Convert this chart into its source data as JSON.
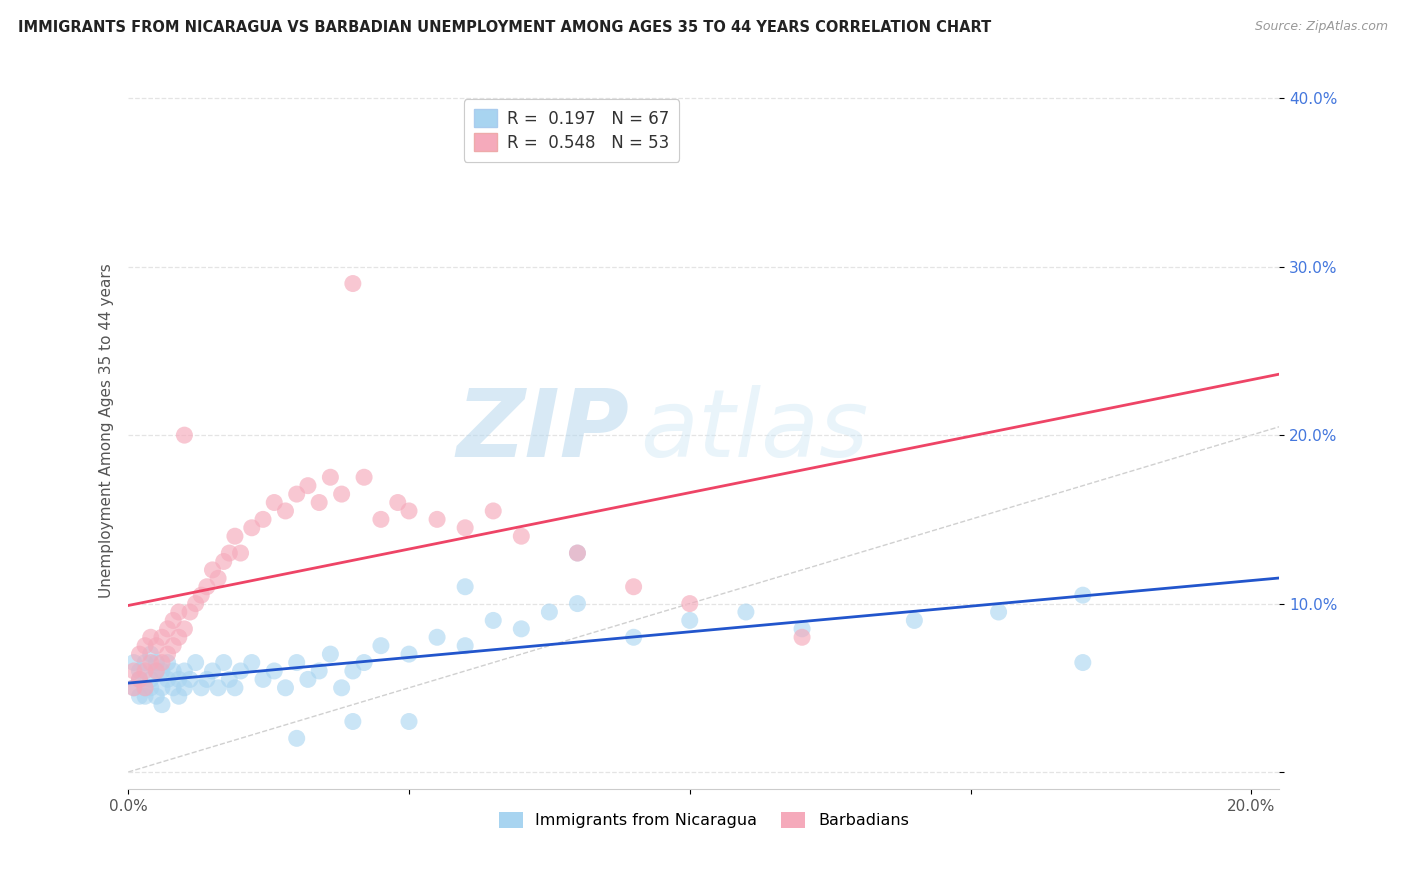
{
  "title": "IMMIGRANTS FROM NICARAGUA VS BARBADIAN UNEMPLOYMENT AMONG AGES 35 TO 44 YEARS CORRELATION CHART",
  "source": "Source: ZipAtlas.com",
  "ylabel": "Unemployment Among Ages 35 to 44 years",
  "watermark_zip": "ZIP",
  "watermark_atlas": "atlas",
  "xlim": [
    0.0,
    0.205
  ],
  "ylim": [
    -0.01,
    0.415
  ],
  "xtick_vals": [
    0.0,
    0.05,
    0.1,
    0.15,
    0.2
  ],
  "ytick_vals": [
    0.0,
    0.1,
    0.2,
    0.3,
    0.4
  ],
  "xticklabels": [
    "0.0%",
    "",
    "",
    "",
    "20.0%"
  ],
  "yticklabels_right": [
    "",
    "10.0%",
    "20.0%",
    "30.0%",
    "40.0%"
  ],
  "legend1_label": "Immigrants from Nicaragua",
  "legend2_label": "Barbadians",
  "R1": 0.197,
  "N1": 67,
  "R2": 0.548,
  "N2": 53,
  "color_blue_scatter": "#A8D4F0",
  "color_pink_scatter": "#F5AABB",
  "color_blue_line": "#2255CC",
  "color_pink_line": "#EE4466",
  "color_diag": "#C8C8C8",
  "background_color": "#ffffff",
  "grid_color": "#E4E4E4",
  "title_color": "#222222",
  "source_color": "#999999",
  "ylabel_color": "#555555",
  "ytick_color": "#4477DD",
  "xtick_color": "#555555",
  "blue_x": [
    0.001,
    0.001,
    0.002,
    0.002,
    0.002,
    0.003,
    0.003,
    0.003,
    0.004,
    0.004,
    0.004,
    0.005,
    0.005,
    0.005,
    0.006,
    0.006,
    0.006,
    0.007,
    0.007,
    0.008,
    0.008,
    0.009,
    0.009,
    0.01,
    0.01,
    0.011,
    0.012,
    0.013,
    0.014,
    0.015,
    0.016,
    0.017,
    0.018,
    0.019,
    0.02,
    0.022,
    0.024,
    0.026,
    0.028,
    0.03,
    0.032,
    0.034,
    0.036,
    0.038,
    0.04,
    0.042,
    0.045,
    0.05,
    0.055,
    0.06,
    0.065,
    0.07,
    0.075,
    0.08,
    0.09,
    0.1,
    0.11,
    0.12,
    0.14,
    0.155,
    0.17,
    0.08,
    0.06,
    0.04,
    0.03,
    0.05,
    0.17
  ],
  "blue_y": [
    0.05,
    0.065,
    0.055,
    0.045,
    0.06,
    0.05,
    0.065,
    0.045,
    0.055,
    0.07,
    0.05,
    0.06,
    0.045,
    0.065,
    0.05,
    0.06,
    0.04,
    0.055,
    0.065,
    0.05,
    0.06,
    0.055,
    0.045,
    0.06,
    0.05,
    0.055,
    0.065,
    0.05,
    0.055,
    0.06,
    0.05,
    0.065,
    0.055,
    0.05,
    0.06,
    0.065,
    0.055,
    0.06,
    0.05,
    0.065,
    0.055,
    0.06,
    0.07,
    0.05,
    0.06,
    0.065,
    0.075,
    0.07,
    0.08,
    0.075,
    0.09,
    0.085,
    0.095,
    0.1,
    0.08,
    0.09,
    0.095,
    0.085,
    0.09,
    0.095,
    0.105,
    0.13,
    0.11,
    0.03,
    0.02,
    0.03,
    0.065
  ],
  "pink_x": [
    0.001,
    0.001,
    0.002,
    0.002,
    0.003,
    0.003,
    0.003,
    0.004,
    0.004,
    0.005,
    0.005,
    0.006,
    0.006,
    0.007,
    0.007,
    0.008,
    0.008,
    0.009,
    0.009,
    0.01,
    0.01,
    0.011,
    0.012,
    0.013,
    0.014,
    0.015,
    0.016,
    0.017,
    0.018,
    0.019,
    0.02,
    0.022,
    0.024,
    0.026,
    0.028,
    0.03,
    0.032,
    0.034,
    0.036,
    0.038,
    0.04,
    0.042,
    0.045,
    0.048,
    0.05,
    0.055,
    0.06,
    0.065,
    0.07,
    0.08,
    0.09,
    0.1,
    0.12
  ],
  "pink_y": [
    0.05,
    0.06,
    0.055,
    0.07,
    0.06,
    0.075,
    0.05,
    0.065,
    0.08,
    0.06,
    0.075,
    0.065,
    0.08,
    0.07,
    0.085,
    0.075,
    0.09,
    0.08,
    0.095,
    0.085,
    0.2,
    0.095,
    0.1,
    0.105,
    0.11,
    0.12,
    0.115,
    0.125,
    0.13,
    0.14,
    0.13,
    0.145,
    0.15,
    0.16,
    0.155,
    0.165,
    0.17,
    0.16,
    0.175,
    0.165,
    0.29,
    0.175,
    0.15,
    0.16,
    0.155,
    0.15,
    0.145,
    0.155,
    0.14,
    0.13,
    0.11,
    0.1,
    0.08
  ]
}
